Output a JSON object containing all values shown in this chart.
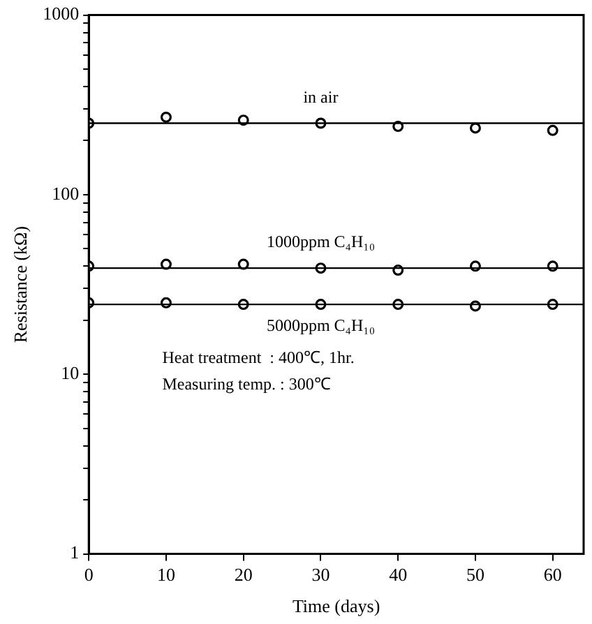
{
  "chart_data": {
    "type": "scatter",
    "xlabel": "Time (days)",
    "ylabel": "Resistance (kΩ)",
    "xlim": [
      0,
      64
    ],
    "xticks": [
      0,
      10,
      20,
      30,
      40,
      50,
      60
    ],
    "ylim": [
      1,
      1000
    ],
    "log": "y",
    "yticks": [
      1,
      {
        "value": 2,
        "label": null
      },
      {
        "value": 3,
        "label": null
      },
      {
        "value": 4,
        "label": null
      },
      {
        "value": 5,
        "label": null
      },
      {
        "value": 6,
        "label": null
      },
      {
        "value": 7,
        "label": null
      },
      {
        "value": 8,
        "label": null
      },
      {
        "value": 9,
        "label": null
      },
      10,
      {
        "value": 20,
        "label": null
      },
      {
        "value": 30,
        "label": null
      },
      {
        "value": 40,
        "label": null
      },
      {
        "value": 50,
        "label": null
      },
      {
        "value": 60,
        "label": null
      },
      {
        "value": 70,
        "label": null
      },
      {
        "value": 80,
        "label": null
      },
      {
        "value": 90,
        "label": null
      },
      100,
      {
        "value": 200,
        "label": null
      },
      {
        "value": 300,
        "label": null
      },
      {
        "value": 400,
        "label": null
      },
      {
        "value": 500,
        "label": null
      },
      {
        "value": 600,
        "label": null
      },
      {
        "value": 700,
        "label": null
      },
      {
        "value": 800,
        "label": null
      },
      {
        "value": 900,
        "label": null
      },
      1000
    ],
    "grid": false,
    "legend": false,
    "marker": "circle",
    "x": [
      0,
      10,
      20,
      30,
      40,
      50,
      60
    ],
    "series": [
      {
        "name": "in air",
        "color": "#000000",
        "values": [
          250,
          270,
          260,
          250,
          240,
          235,
          228
        ]
      },
      {
        "name": "1000ppm C₄H₁₀",
        "color": "#000000",
        "values": [
          40,
          41,
          41,
          39,
          38,
          40,
          40
        ]
      },
      {
        "name": "5000ppm C₄H₁₀",
        "color": "#000000",
        "values": [
          25,
          25,
          24.5,
          24.5,
          24.5,
          24,
          24.5
        ]
      }
    ],
    "ref_lines": [
      {
        "axis": "y",
        "value": 250,
        "color": "#000000"
      },
      {
        "axis": "y",
        "value": 39,
        "color": "#000000"
      },
      {
        "axis": "y",
        "value": 24.5,
        "color": "#000000"
      }
    ],
    "annotations": [
      "Heat treatment  : 400℃, 1hr.",
      "Measuring temp. : 300℃"
    ]
  }
}
